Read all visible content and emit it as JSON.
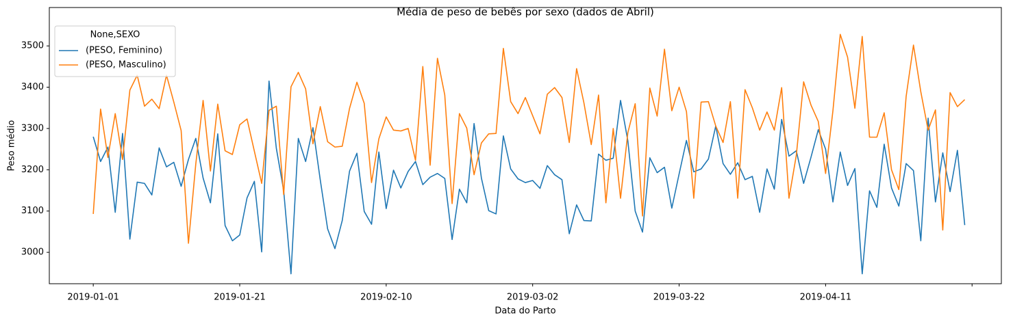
{
  "chart_data": {
    "type": "line",
    "title": "Média de peso de bebês por sexo (dados de Abril)",
    "xlabel": "Data do Parto",
    "ylabel": "Peso médio",
    "legend_title": "None,SEXO",
    "legend": "upper left",
    "x": [
      "2019-01-01",
      "2019-01-02",
      "2019-01-03",
      "2019-01-04",
      "2019-01-05",
      "2019-01-06",
      "2019-01-07",
      "2019-01-08",
      "2019-01-09",
      "2019-01-10",
      "2019-01-11",
      "2019-01-12",
      "2019-01-13",
      "2019-01-14",
      "2019-01-15",
      "2019-01-16",
      "2019-01-17",
      "2019-01-18",
      "2019-01-19",
      "2019-01-20",
      "2019-01-21",
      "2019-01-22",
      "2019-01-23",
      "2019-01-24",
      "2019-01-25",
      "2019-01-26",
      "2019-01-27",
      "2019-01-28",
      "2019-01-29",
      "2019-01-30",
      "2019-01-31",
      "2019-02-01",
      "2019-02-02",
      "2019-02-03",
      "2019-02-04",
      "2019-02-05",
      "2019-02-06",
      "2019-02-07",
      "2019-02-08",
      "2019-02-09",
      "2019-02-10",
      "2019-02-11",
      "2019-02-12",
      "2019-02-13",
      "2019-02-14",
      "2019-02-15",
      "2019-02-16",
      "2019-02-17",
      "2019-02-18",
      "2019-02-19",
      "2019-02-20",
      "2019-02-21",
      "2019-02-22",
      "2019-02-23",
      "2019-02-24",
      "2019-02-25",
      "2019-02-26",
      "2019-02-27",
      "2019-02-28",
      "2019-03-01",
      "2019-03-02",
      "2019-03-03",
      "2019-03-04",
      "2019-03-05",
      "2019-03-06",
      "2019-03-07",
      "2019-03-08",
      "2019-03-09",
      "2019-03-10",
      "2019-03-11",
      "2019-03-12",
      "2019-03-13",
      "2019-03-14",
      "2019-03-15",
      "2019-03-16",
      "2019-03-17",
      "2019-03-18",
      "2019-03-19",
      "2019-03-20",
      "2019-03-21",
      "2019-03-22",
      "2019-03-23",
      "2019-03-24",
      "2019-03-25",
      "2019-03-26",
      "2019-03-27",
      "2019-03-28",
      "2019-03-29",
      "2019-03-30",
      "2019-03-31",
      "2019-04-01",
      "2019-04-02",
      "2019-04-03",
      "2019-04-04",
      "2019-04-05",
      "2019-04-06",
      "2019-04-07",
      "2019-04-08",
      "2019-04-09",
      "2019-04-10",
      "2019-04-11",
      "2019-04-12",
      "2019-04-13",
      "2019-04-14",
      "2019-04-15",
      "2019-04-16",
      "2019-04-17",
      "2019-04-18",
      "2019-04-19",
      "2019-04-20",
      "2019-04-21",
      "2019-04-22",
      "2019-04-23",
      "2019-04-24",
      "2019-04-25",
      "2019-04-26",
      "2019-04-27",
      "2019-04-28",
      "2019-04-29",
      "2019-04-30"
    ],
    "series": [
      {
        "name": "(PESO, Feminino)",
        "color": "#1f77b4",
        "values": [
          3280,
          3220,
          3255,
          3097,
          3288,
          3032,
          3170,
          3167,
          3139,
          3253,
          3207,
          3218,
          3160,
          3225,
          3276,
          3180,
          3120,
          3287,
          3065,
          3028,
          3042,
          3132,
          3172,
          3001,
          3415,
          3252,
          3150,
          2948,
          3276,
          3220,
          3302,
          3175,
          3057,
          3009,
          3077,
          3197,
          3240,
          3099,
          3068,
          3243,
          3106,
          3199,
          3156,
          3196,
          3220,
          3164,
          3182,
          3191,
          3179,
          3031,
          3153,
          3120,
          3312,
          3180,
          3101,
          3093,
          3282,
          3202,
          3178,
          3169,
          3174,
          3155,
          3210,
          3188,
          3176,
          3045,
          3115,
          3077,
          3076,
          3238,
          3223,
          3228,
          3368,
          3270,
          3100,
          3049,
          3229,
          3193,
          3206,
          3107,
          3190,
          3271,
          3195,
          3202,
          3226,
          3306,
          3215,
          3189,
          3217,
          3176,
          3184,
          3097,
          3202,
          3153,
          3322,
          3233,
          3246,
          3167,
          3230,
          3297,
          3250,
          3122,
          3243,
          3162,
          3203,
          2948,
          3149,
          3109,
          3262,
          3156,
          3112,
          3215,
          3198,
          3028,
          3325,
          3122,
          3241,
          3147,
          3247,
          3066
        ]
      },
      {
        "name": "(PESO, Masculino)",
        "color": "#ff7f0e",
        "values": [
          3093,
          3347,
          3230,
          3336,
          3225,
          3393,
          3429,
          3354,
          3371,
          3348,
          3429,
          3364,
          3295,
          3022,
          3214,
          3368,
          3197,
          3359,
          3246,
          3237,
          3309,
          3323,
          3245,
          3167,
          3344,
          3354,
          3140,
          3401,
          3436,
          3396,
          3263,
          3353,
          3268,
          3255,
          3257,
          3349,
          3412,
          3361,
          3169,
          3275,
          3328,
          3296,
          3294,
          3300,
          3223,
          3450,
          3211,
          3470,
          3381,
          3118,
          3336,
          3301,
          3188,
          3265,
          3287,
          3288,
          3494,
          3365,
          3336,
          3375,
          3331,
          3287,
          3383,
          3399,
          3375,
          3266,
          3445,
          3362,
          3261,
          3381,
          3120,
          3300,
          3131,
          3290,
          3360,
          3088,
          3398,
          3330,
          3492,
          3343,
          3400,
          3341,
          3131,
          3364,
          3365,
          3306,
          3266,
          3365,
          3131,
          3394,
          3350,
          3296,
          3340,
          3296,
          3399,
          3131,
          3235,
          3413,
          3357,
          3317,
          3191,
          3343,
          3528,
          3473,
          3349,
          3523,
          3279,
          3279,
          3338,
          3200,
          3152,
          3378,
          3502,
          3389,
          3296,
          3345,
          3054,
          3387,
          3353,
          3370
        ]
      }
    ],
    "xlim": [
      "2018-12-26",
      "2019-05-05"
    ],
    "xticks": [
      "2019-01-01",
      "2019-01-21",
      "2019-02-10",
      "2019-03-02",
      "2019-03-22",
      "2019-04-11",
      {
        "value": "2019-05-01",
        "label": null
      }
    ],
    "ylim": [
      2924,
      3593
    ],
    "yticks": [
      3000,
      3100,
      3200,
      3300,
      3400,
      3500
    ]
  }
}
